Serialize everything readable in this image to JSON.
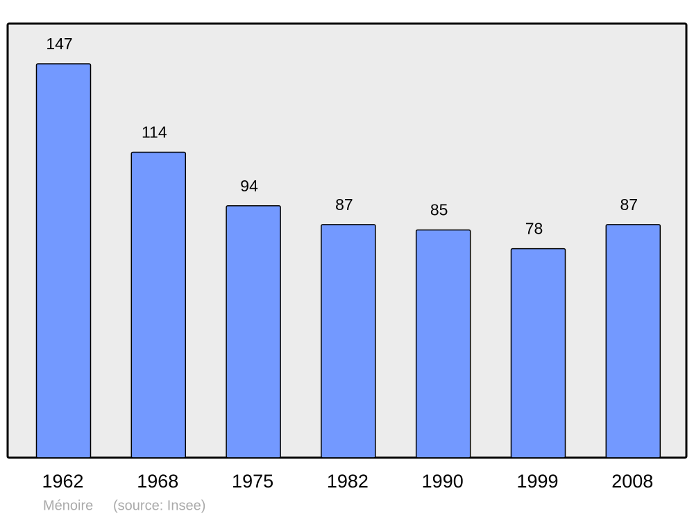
{
  "chart_data": {
    "type": "bar",
    "categories": [
      "1962",
      "1968",
      "1975",
      "1982",
      "1990",
      "1999",
      "2008"
    ],
    "values": [
      147,
      114,
      94,
      87,
      85,
      78,
      87
    ],
    "color": "#7399ff",
    "place": "Ménoire",
    "source": "(source: Insee)"
  }
}
